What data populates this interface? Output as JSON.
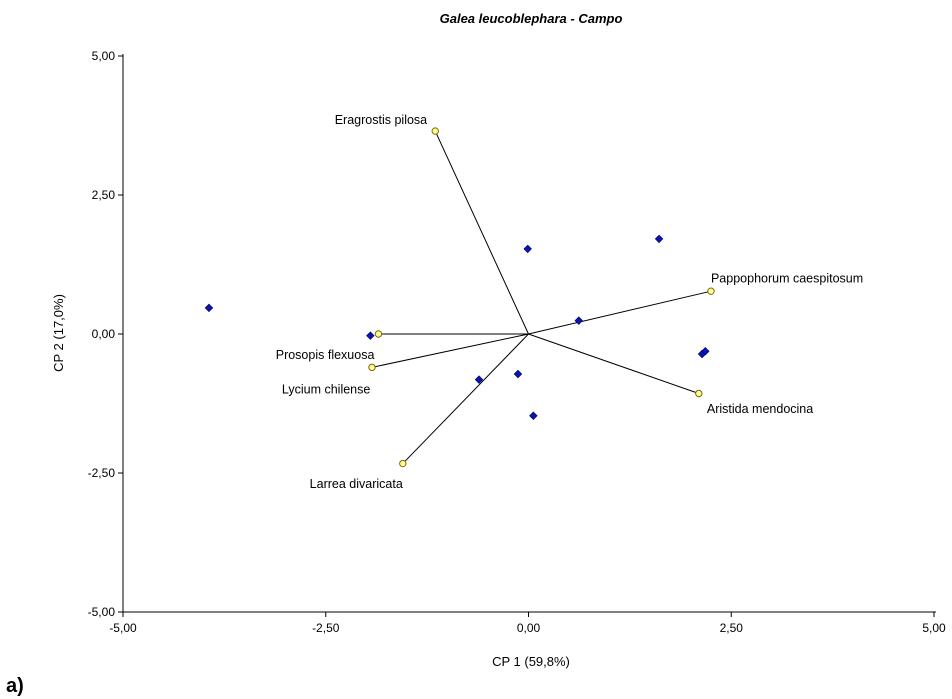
{
  "panel_label": "a)",
  "chart_data": {
    "type": "scatter",
    "subtype": "biplot",
    "title": "Galea leucoblephara - Campo",
    "xlabel": "CP 1 (59,8%)",
    "ylabel": "CP 2 (17,0%)",
    "xlim": [
      -5,
      5
    ],
    "ylim": [
      -5,
      5
    ],
    "xticks": [
      {
        "value": -5,
        "label": "-5,00"
      },
      {
        "value": -2.5,
        "label": "-2,50"
      },
      {
        "value": 0,
        "label": "0,00"
      },
      {
        "value": 2.5,
        "label": "2,50"
      },
      {
        "value": 5,
        "label": "5,00"
      }
    ],
    "yticks": [
      {
        "value": 5,
        "label": "5,00"
      },
      {
        "value": 2.5,
        "label": "2,50"
      },
      {
        "value": 0,
        "label": "0,00"
      },
      {
        "value": -2.5,
        "label": "-2,50"
      },
      {
        "value": -5,
        "label": "-5,00"
      }
    ],
    "grid": false,
    "colors": {
      "points": "#0a14b4",
      "vectors": "#ffff99",
      "vector_outline": "#7a6a00",
      "lines": "#000000"
    },
    "points": [
      {
        "x": -3.94,
        "y": 0.47
      },
      {
        "x": -1.95,
        "y": -0.03
      },
      {
        "x": -0.01,
        "y": 1.53
      },
      {
        "x": 1.61,
        "y": 1.71
      },
      {
        "x": 0.62,
        "y": 0.24
      },
      {
        "x": 2.14,
        "y": -0.36
      },
      {
        "x": 2.18,
        "y": -0.31
      },
      {
        "x": -0.61,
        "y": -0.82
      },
      {
        "x": -0.13,
        "y": -0.72
      },
      {
        "x": 0.06,
        "y": -1.47
      }
    ],
    "vectors": [
      {
        "label": "Eragrostis pilosa",
        "x": -1.15,
        "y": 3.65,
        "anchor": "end",
        "lx": -1.25,
        "ly": 3.85
      },
      {
        "label": "Pappophorum caespitosum",
        "x": 2.25,
        "y": 0.77,
        "anchor": "start",
        "lx": 2.25,
        "ly": 1.0
      },
      {
        "label": "Aristida mendocina",
        "x": 2.1,
        "y": -1.07,
        "anchor": "start",
        "lx": 2.2,
        "ly": -1.35
      },
      {
        "label": "Prosopis flexuosa",
        "x": -1.85,
        "y": 0.0,
        "anchor": "end",
        "lx": -1.9,
        "ly": -0.38
      },
      {
        "label": "Lycium chilense",
        "x": -1.93,
        "y": -0.6,
        "anchor": "end",
        "lx": -1.95,
        "ly": -1.0
      },
      {
        "label": "Larrea divaricata",
        "x": -1.55,
        "y": -2.33,
        "anchor": "end",
        "lx": -1.55,
        "ly": -2.7
      }
    ]
  }
}
